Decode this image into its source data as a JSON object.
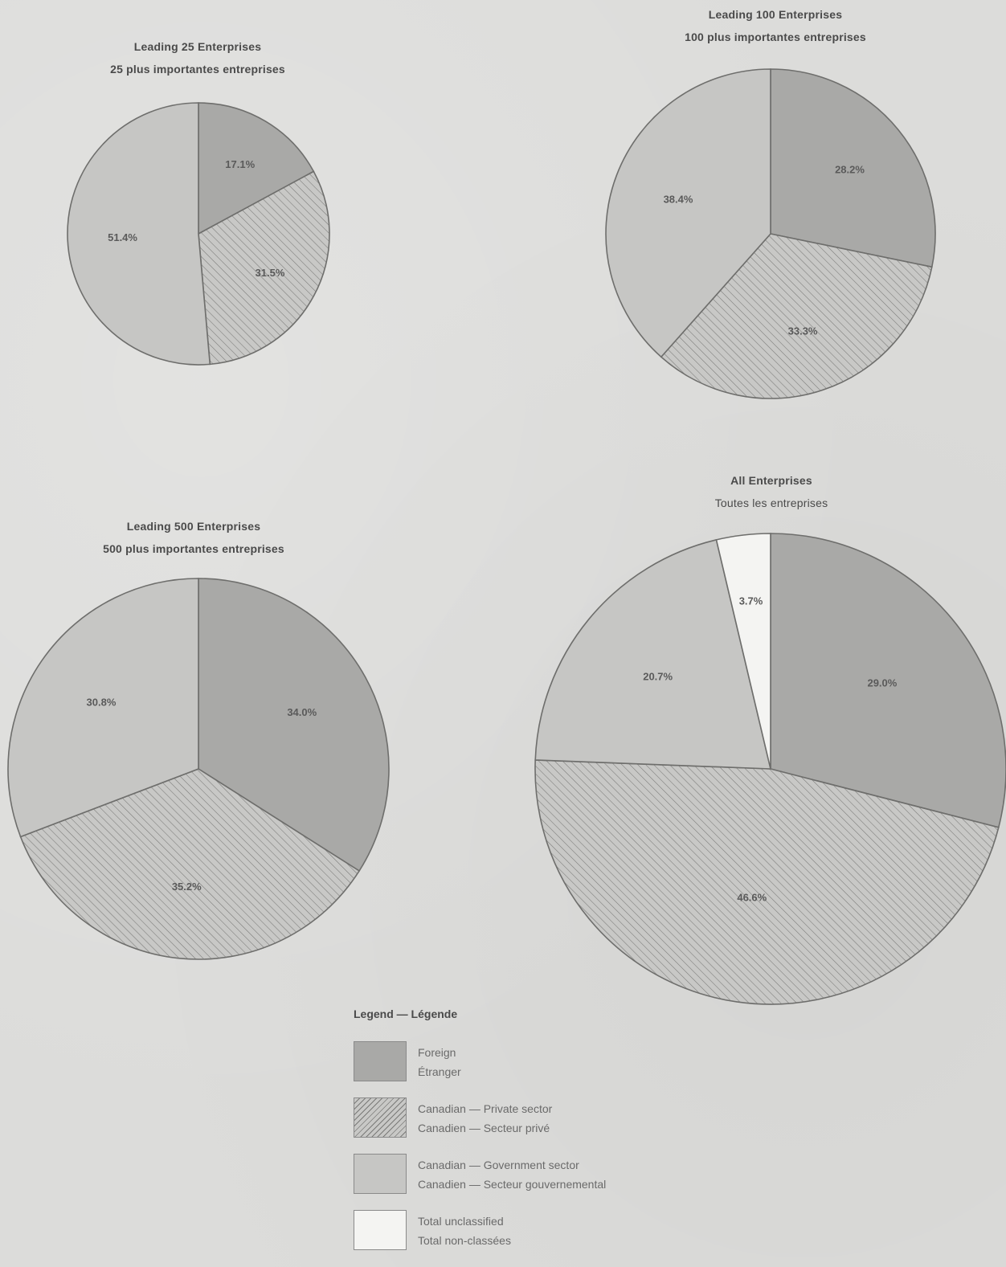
{
  "colors": {
    "foreign": "#a9a9a7",
    "private_bg": "#c8c8c6",
    "private_hatch": "#7a7a78",
    "government": "#c6c6c4",
    "unclassified": "#f4f4f2",
    "outline": "#6e6e6c"
  },
  "chart_data": [
    {
      "type": "pie",
      "title": "Leading 25 Enterprises",
      "subtitle": "25 plus importantes entreprises",
      "slices": [
        {
          "category": "foreign",
          "value": 17.1,
          "label": "17.1%"
        },
        {
          "category": "private",
          "value": 31.5,
          "label": "31.5%"
        },
        {
          "category": "government",
          "value": 51.4,
          "label": "51.4%"
        }
      ]
    },
    {
      "type": "pie",
      "title": "Leading 100 Enterprises",
      "subtitle": "100 plus importantes entreprises",
      "slices": [
        {
          "category": "foreign",
          "value": 28.2,
          "label": "28.2%"
        },
        {
          "category": "private",
          "value": 33.3,
          "label": "33.3%"
        },
        {
          "category": "government",
          "value": 38.4,
          "label": "38.4%"
        }
      ]
    },
    {
      "type": "pie",
      "title": "Leading 500 Enterprises",
      "subtitle": "500 plus importantes entreprises",
      "slices": [
        {
          "category": "foreign",
          "value": 34.0,
          "label": "34.0%"
        },
        {
          "category": "private",
          "value": 35.2,
          "label": "35.2%"
        },
        {
          "category": "government",
          "value": 30.8,
          "label": "30.8%"
        }
      ]
    },
    {
      "type": "pie",
      "title": "All Enterprises",
      "subtitle": "Toutes les entreprises",
      "slices": [
        {
          "category": "foreign",
          "value": 29.0,
          "label": "29.0%"
        },
        {
          "category": "private",
          "value": 46.6,
          "label": "46.6%"
        },
        {
          "category": "government",
          "value": 20.7,
          "label": "20.7%"
        },
        {
          "category": "unclassified",
          "value": 3.7,
          "label": "3.7%"
        }
      ]
    }
  ],
  "legend": {
    "title": "Legend — Légende",
    "items": [
      {
        "category": "foreign",
        "en": "Foreign",
        "fr": "Étranger"
      },
      {
        "category": "private",
        "en": "Canadian — Private sector",
        "fr": "Canadien — Secteur privé"
      },
      {
        "category": "government",
        "en": "Canadian — Government sector",
        "fr": "Canadien — Secteur gouvernemental"
      },
      {
        "category": "unclassified",
        "en": "Total unclassified",
        "fr": "Total non-classées"
      }
    ]
  }
}
